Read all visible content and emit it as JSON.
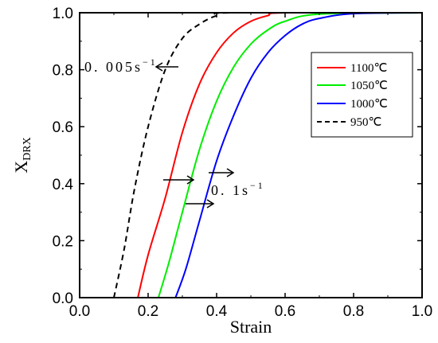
{
  "chart_data": {
    "type": "line",
    "xlabel": "Strain",
    "ylabel_main": "X",
    "ylabel_sub": "DRX",
    "xlim": [
      0.0,
      1.0
    ],
    "ylim": [
      0.0,
      1.0
    ],
    "x_ticks": [
      "0.0",
      "0.2",
      "0.4",
      "0.6",
      "0.8",
      "1.0"
    ],
    "y_ticks": [
      "0.0",
      "0.2",
      "0.4",
      "0.6",
      "0.8",
      "1.0"
    ],
    "grid": false,
    "legend_position": "top-right",
    "series": [
      {
        "name": "1100℃",
        "color": "#ff0000",
        "dash": "solid",
        "start_strain": 0.17,
        "points": [
          [
            0.17,
            0.0
          ],
          [
            0.2,
            0.15
          ],
          [
            0.25,
            0.35
          ],
          [
            0.3,
            0.58
          ],
          [
            0.35,
            0.75
          ],
          [
            0.4,
            0.86
          ],
          [
            0.45,
            0.93
          ],
          [
            0.5,
            0.97
          ],
          [
            0.55,
            0.99
          ],
          [
            0.6,
            1.0
          ],
          [
            1.0,
            1.0
          ]
        ]
      },
      {
        "name": "1050℃",
        "color": "#00ee00",
        "dash": "solid",
        "start_strain": 0.23,
        "points": [
          [
            0.23,
            0.0
          ],
          [
            0.26,
            0.12
          ],
          [
            0.3,
            0.3
          ],
          [
            0.35,
            0.52
          ],
          [
            0.4,
            0.69
          ],
          [
            0.45,
            0.81
          ],
          [
            0.5,
            0.89
          ],
          [
            0.55,
            0.94
          ],
          [
            0.6,
            0.97
          ],
          [
            0.7,
            0.995
          ],
          [
            1.0,
            1.0
          ]
        ]
      },
      {
        "name": "1000℃",
        "color": "#0000ff",
        "dash": "solid",
        "start_strain": 0.28,
        "points": [
          [
            0.28,
            0.0
          ],
          [
            0.31,
            0.1
          ],
          [
            0.35,
            0.27
          ],
          [
            0.4,
            0.48
          ],
          [
            0.45,
            0.64
          ],
          [
            0.5,
            0.77
          ],
          [
            0.55,
            0.86
          ],
          [
            0.6,
            0.92
          ],
          [
            0.65,
            0.96
          ],
          [
            0.7,
            0.98
          ],
          [
            0.8,
            0.997
          ],
          [
            1.0,
            1.0
          ]
        ]
      },
      {
        "name": "950℃",
        "color": "#000000",
        "dash": "dashed",
        "start_strain": 0.1,
        "points": [
          [
            0.1,
            0.0
          ],
          [
            0.13,
            0.17
          ],
          [
            0.16,
            0.38
          ],
          [
            0.2,
            0.6
          ],
          [
            0.25,
            0.8
          ],
          [
            0.3,
            0.91
          ],
          [
            0.35,
            0.96
          ],
          [
            0.4,
            0.99
          ],
          [
            0.45,
            1.0
          ],
          [
            1.0,
            1.0
          ]
        ]
      }
    ],
    "annotations": [
      {
        "text": "0. 005s",
        "superscript": "−1"
      },
      {
        "text": "0. 1s",
        "superscript": "−1"
      }
    ]
  }
}
